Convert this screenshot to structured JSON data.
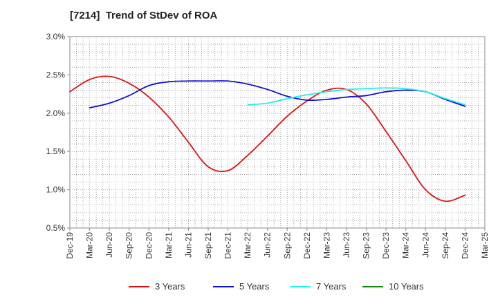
{
  "chart_data": {
    "type": "line",
    "title": "[7214]  Trend of StDev of ROA",
    "xlabel": "",
    "ylabel": "",
    "x": [
      "Dec-19",
      "Mar-20",
      "Jun-20",
      "Sep-20",
      "Dec-20",
      "Mar-21",
      "Jun-21",
      "Sep-21",
      "Dec-21",
      "Mar-22",
      "Jun-22",
      "Sep-22",
      "Dec-22",
      "Mar-23",
      "Jun-23",
      "Sep-23",
      "Dec-23",
      "Mar-24",
      "Jun-24",
      "Sep-24",
      "Dec-24",
      "Mar-25"
    ],
    "y_ticks": [
      "0.5%",
      "1.0%",
      "1.5%",
      "2.0%",
      "2.5%",
      "3.0%"
    ],
    "ylim": [
      0.5,
      3.0
    ],
    "y_unit": "%",
    "grid": true,
    "legend_position": "bottom",
    "series": [
      {
        "name": "3 Years",
        "color": "#dd1111",
        "values": [
          2.28,
          2.44,
          2.48,
          2.39,
          2.21,
          1.95,
          1.62,
          1.3,
          1.25,
          1.45,
          1.7,
          1.96,
          2.16,
          2.3,
          2.31,
          2.12,
          1.76,
          1.38,
          1.0,
          0.85,
          0.93,
          null
        ]
      },
      {
        "name": "5 Years",
        "color": "#1111cc",
        "values": [
          null,
          2.07,
          2.13,
          2.23,
          2.36,
          2.41,
          2.42,
          2.42,
          2.42,
          2.38,
          2.31,
          2.22,
          2.17,
          2.18,
          2.21,
          2.23,
          2.28,
          2.3,
          2.28,
          2.18,
          2.09,
          null
        ]
      },
      {
        "name": "7 Years",
        "color": "#22eeee",
        "values": [
          null,
          null,
          null,
          null,
          null,
          null,
          null,
          null,
          null,
          2.11,
          2.13,
          2.19,
          2.24,
          2.28,
          2.31,
          2.32,
          2.33,
          2.32,
          2.28,
          2.19,
          2.11,
          null
        ]
      },
      {
        "name": "10 Years",
        "color": "#118811",
        "values": [
          null,
          null,
          null,
          null,
          null,
          null,
          null,
          null,
          null,
          null,
          null,
          null,
          null,
          null,
          null,
          null,
          null,
          null,
          null,
          null,
          null,
          null
        ]
      }
    ]
  }
}
